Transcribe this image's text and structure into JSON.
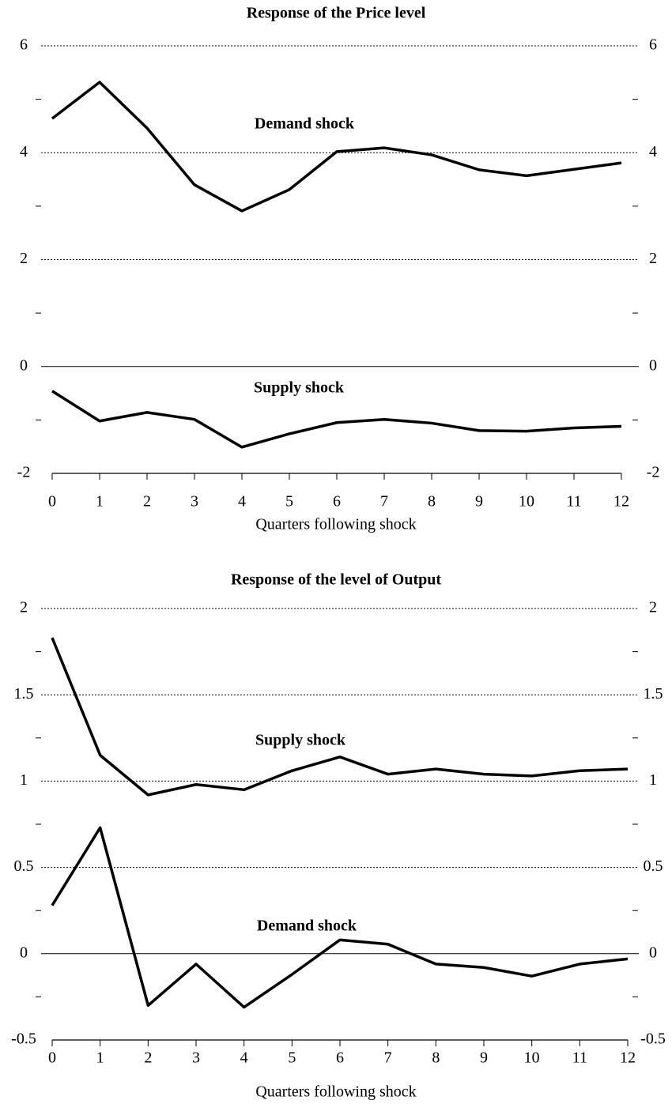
{
  "chart_data": [
    {
      "type": "line",
      "title": "Response of the Price  level",
      "xlabel": "Quarters following shock",
      "x": [
        0,
        1,
        2,
        3,
        4,
        5,
        6,
        7,
        8,
        9,
        10,
        11,
        12
      ],
      "xlim": [
        0,
        12
      ],
      "xticks": [
        0,
        1,
        2,
        3,
        4,
        5,
        6,
        7,
        8,
        9,
        10,
        11,
        12
      ],
      "ylim": [
        -2,
        6
      ],
      "yticks": [
        -2,
        0,
        2,
        4,
        6
      ],
      "yminorticks": [
        -1,
        1,
        3,
        5
      ],
      "grid": true,
      "series": [
        {
          "name": "Demand shock",
          "color": "#000000",
          "values": [
            4.64,
            5.32,
            4.46,
            3.4,
            2.91,
            3.31,
            4.02,
            4.09,
            3.96,
            3.68,
            3.57,
            3.69,
            3.81
          ]
        },
        {
          "name": "Supply shock",
          "color": "#000000",
          "values": [
            -0.46,
            -1.02,
            -0.86,
            -0.99,
            -1.51,
            -1.26,
            -1.05,
            -0.99,
            -1.06,
            -1.2,
            -1.21,
            -1.15,
            -1.12
          ]
        }
      ]
    },
    {
      "type": "line",
      "title": "Response of the level of Output",
      "xlabel": "Quarters following shock",
      "x": [
        0,
        1,
        2,
        3,
        4,
        5,
        6,
        7,
        8,
        9,
        10,
        11,
        12
      ],
      "xlim": [
        0,
        12
      ],
      "xticks": [
        0,
        1,
        2,
        3,
        4,
        5,
        6,
        7,
        8,
        9,
        10,
        11,
        12
      ],
      "ylim": [
        -0.5,
        2
      ],
      "yticks": [
        -0.5,
        0,
        0.5,
        1,
        1.5,
        2
      ],
      "yminorticks": [
        -0.25,
        0.25,
        0.75,
        1.25,
        1.75
      ],
      "grid": true,
      "series": [
        {
          "name": "Supply shock",
          "color": "#000000",
          "values": [
            1.83,
            1.15,
            0.92,
            0.98,
            0.95,
            1.06,
            1.14,
            1.04,
            1.07,
            1.04,
            1.03,
            1.06,
            1.07
          ]
        },
        {
          "name": "Demand shock",
          "color": "#000000",
          "values": [
            0.28,
            0.73,
            -0.3,
            -0.06,
            -0.31,
            -0.12,
            0.08,
            0.055,
            -0.06,
            -0.08,
            -0.13,
            -0.06,
            -0.03
          ]
        }
      ]
    }
  ]
}
